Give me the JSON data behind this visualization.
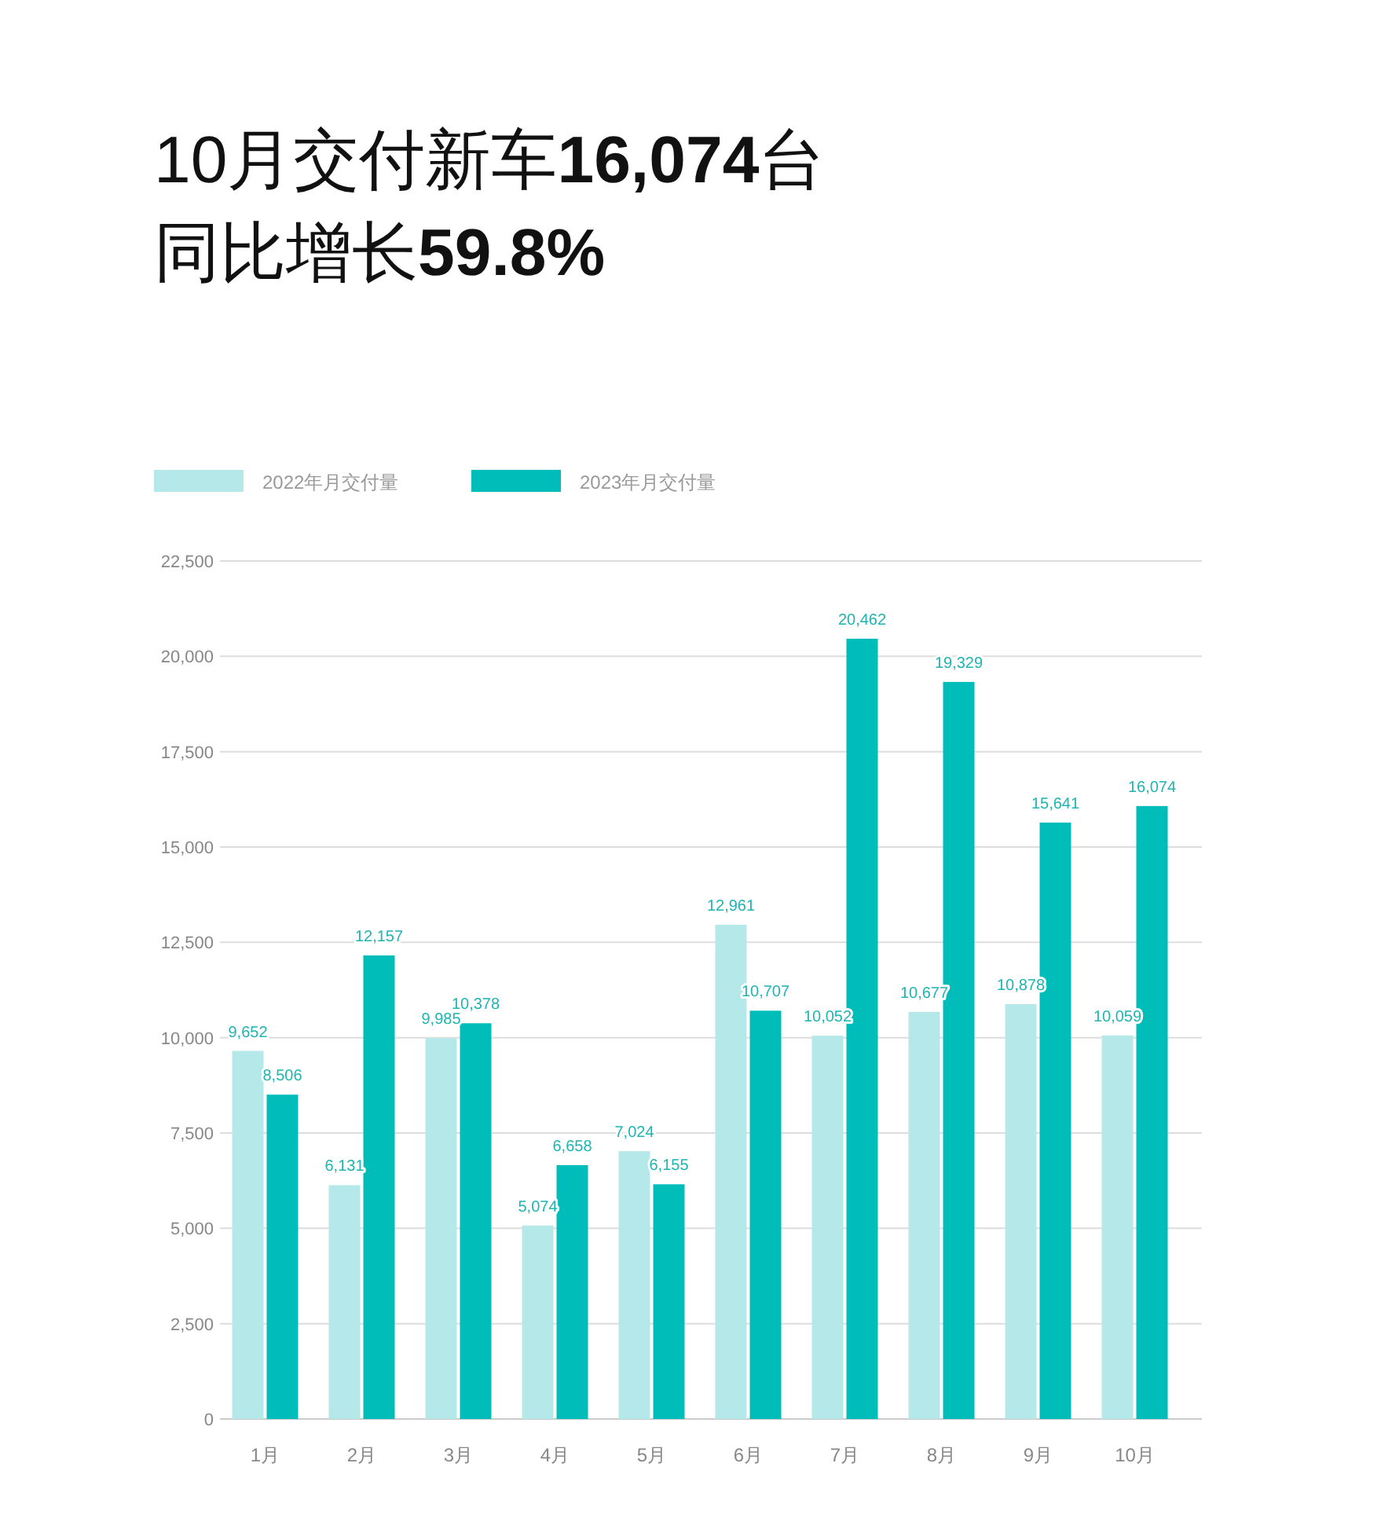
{
  "chart_data": {
    "type": "bar",
    "title": "10月交付新车16,074台",
    "subtitle": "同比增长59.8%",
    "categories": [
      "1月",
      "2月",
      "3月",
      "4月",
      "5月",
      "6月",
      "7月",
      "8月",
      "9月",
      "10月"
    ],
    "series": [
      {
        "name": "2022年月交付量",
        "color": "#b5e8e8",
        "values": [
          9652,
          6131,
          9985,
          5074,
          7024,
          12961,
          10052,
          10677,
          10878,
          10059
        ],
        "value_labels": [
          "9,652",
          "6,131",
          "9,985",
          "5,074",
          "7,024",
          "12,961",
          "10,052",
          "10,677",
          "10,878",
          "10,059"
        ]
      },
      {
        "name": "2023年月交付量",
        "color": "#00bdb9",
        "values": [
          8506,
          12157,
          10378,
          6658,
          6155,
          10707,
          20462,
          19329,
          15641,
          16074
        ],
        "value_labels": [
          "8,506",
          "12,157",
          "10,378",
          "6,658",
          "6,155",
          "10,707",
          "20,462",
          "19,329",
          "15,641",
          "16,074"
        ]
      }
    ],
    "ylim": [
      0,
      22500
    ],
    "yticks": [
      0,
      {
        "value": 2500,
        "label": "2,500"
      },
      {
        "value": 5000,
        "label": "5,000"
      },
      {
        "value": 7500,
        "label": "7,500"
      },
      {
        "value": 10000,
        "label": "10,000"
      },
      {
        "value": 12500,
        "label": "12,500"
      },
      {
        "value": 15000,
        "label": "15,000"
      },
      {
        "value": 17500,
        "label": "17,500"
      },
      {
        "value": 20000,
        "label": "20,000"
      },
      {
        "value": 22500,
        "label": "22,500"
      }
    ],
    "grid": "y",
    "legend": "top left"
  }
}
